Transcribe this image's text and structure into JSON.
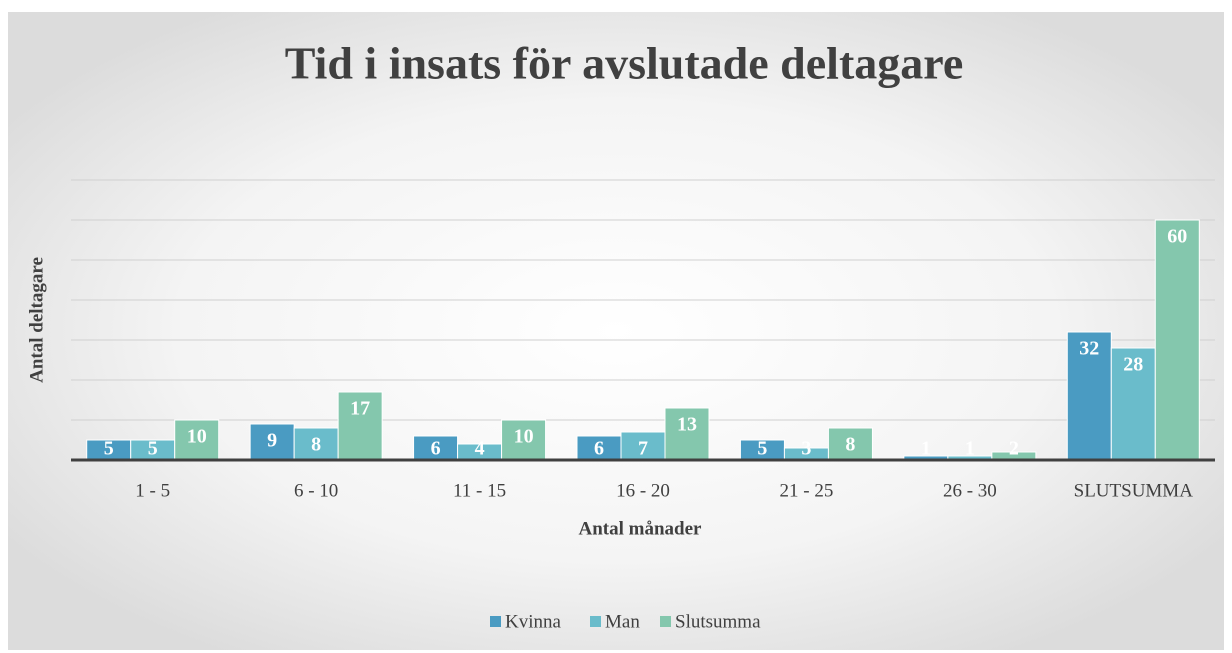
{
  "chart_data": {
    "type": "bar",
    "title": "Tid i insats för avslutade deltagare",
    "x_label": "Antal månader",
    "y_label": "Antal deltagare",
    "categories": [
      "1 - 5",
      "6 - 10",
      "11 - 15",
      "16 - 20",
      "21 - 25",
      "26 - 30",
      "SLUTSUMMA"
    ],
    "series": [
      {
        "name": "Kvinna",
        "color": "#4a9bc2",
        "values": [
          5,
          9,
          6,
          6,
          5,
          1,
          32
        ]
      },
      {
        "name": "Man",
        "color": "#6abccb",
        "values": [
          5,
          8,
          4,
          7,
          3,
          1,
          28
        ]
      },
      {
        "name": "Slutsumma",
        "color": "#84c7ad",
        "values": [
          10,
          17,
          10,
          13,
          8,
          2,
          60
        ]
      }
    ],
    "ylim": [
      0,
      70
    ],
    "yticks": [
      0,
      10,
      20,
      30,
      40,
      50,
      60,
      70
    ],
    "y_tick_labels": false,
    "grid": true,
    "legend": "bottom"
  }
}
